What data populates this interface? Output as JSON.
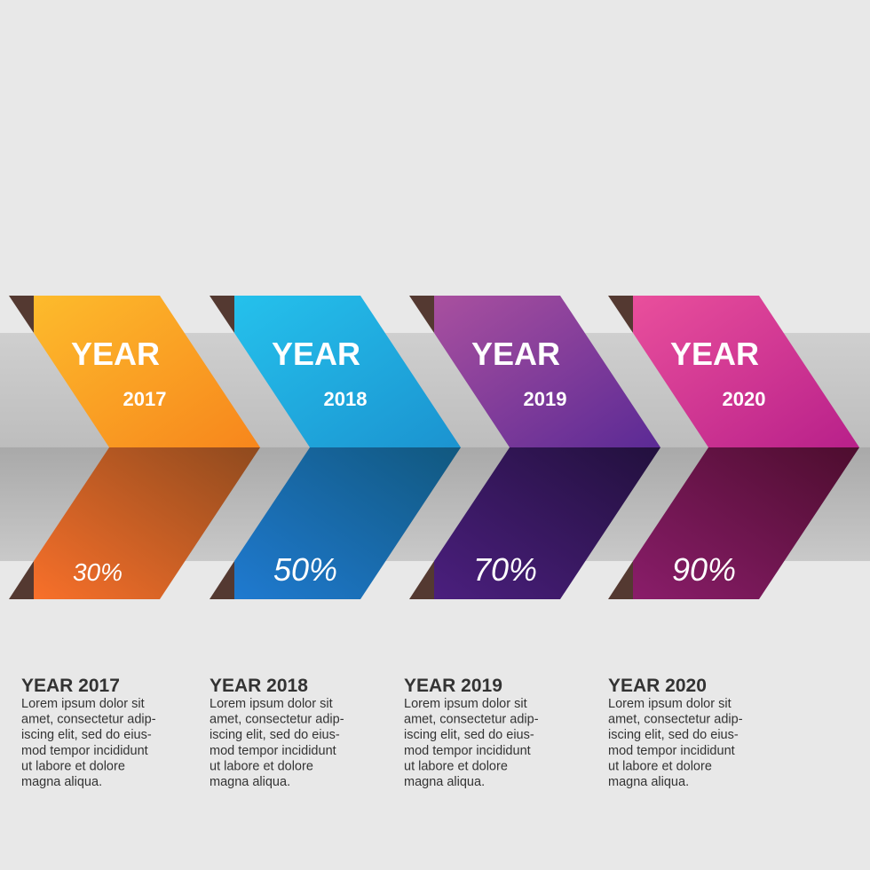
{
  "steps": [
    {
      "label": "YEAR",
      "year": "2017",
      "percent": "30%",
      "title": "YEAR 2017",
      "body": [
        "Lorem ipsum dolor sit",
        "amet, consectetur adip-",
        "iscing elit, sed do eius-",
        "mod tempor incididunt",
        "ut labore et dolore",
        "magna aliqua."
      ]
    },
    {
      "label": "YEAR",
      "year": "2018",
      "percent": "50%",
      "title": "YEAR 2018",
      "body": [
        "Lorem ipsum dolor sit",
        "amet, consectetur adip-",
        "iscing elit, sed do eius-",
        "mod tempor incididunt",
        "ut labore et dolore",
        "magna aliqua."
      ]
    },
    {
      "label": "YEAR",
      "year": "2019",
      "percent": "70%",
      "title": "YEAR 2019",
      "body": [
        "Lorem ipsum dolor sit",
        "amet, consectetur adip-",
        "iscing elit, sed do eius-",
        "mod tempor incididunt",
        "ut labore et dolore",
        "magna aliqua."
      ]
    },
    {
      "label": "YEAR",
      "year": "2020",
      "percent": "90%",
      "title": "YEAR 2020",
      "body": [
        "Lorem ipsum dolor sit",
        "amet, consectetur adip-",
        "iscing elit, sed do eius-",
        "mod tempor incididunt",
        "ut labore et dolore",
        "magna aliqua."
      ]
    }
  ]
}
